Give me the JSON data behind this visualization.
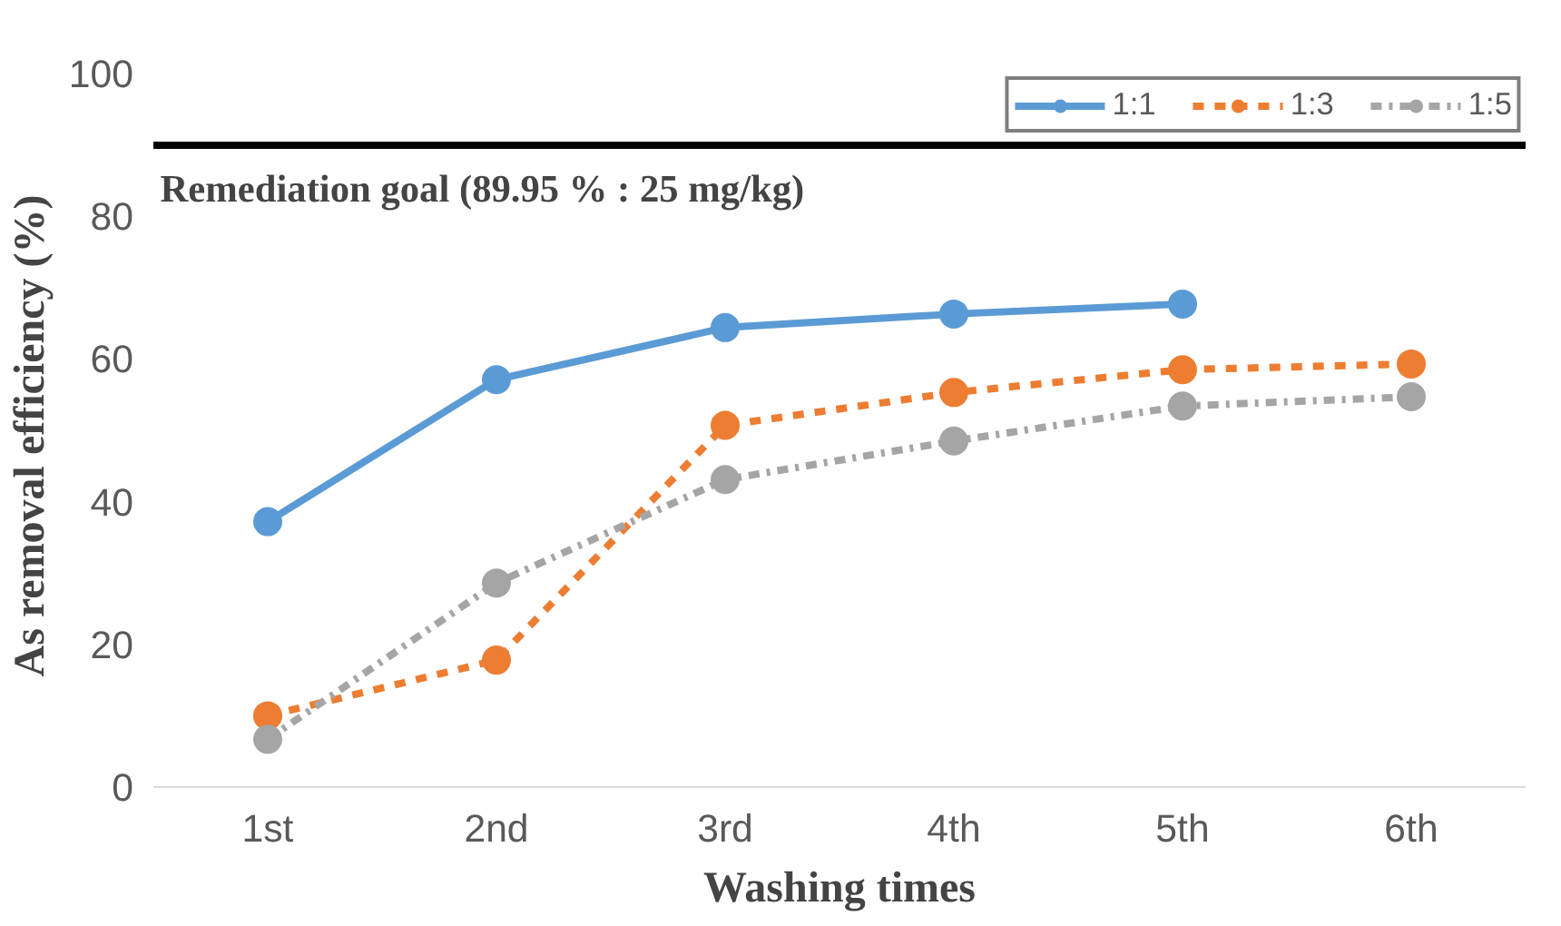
{
  "chart_data": {
    "type": "line",
    "xlabel": "Washing times",
    "ylabel": "As removal efficiency  (%)",
    "categories": [
      "1st",
      "2nd",
      "3rd",
      "4th",
      "5th",
      "6th"
    ],
    "series": [
      {
        "name": "1:1",
        "color": "#5b9bd5",
        "values": [
          37.2,
          57.1,
          64.4,
          66.3,
          67.7,
          null
        ],
        "line_style": "solid"
      },
      {
        "name": "1:3",
        "color": "#ed7d31",
        "values": [
          10.0,
          17.8,
          50.7,
          55.3,
          58.5,
          59.3
        ],
        "line_style": "dashed"
      },
      {
        "name": "1:5",
        "color": "#a5a5a5",
        "values": [
          6.7,
          28.6,
          43.1,
          48.5,
          53.4,
          54.7
        ],
        "line_style": "dashdot"
      }
    ],
    "ylim": [
      0,
      100
    ],
    "yticks": [
      0,
      20,
      40,
      60,
      80,
      100
    ],
    "ref_lines": [
      {
        "axis": "y",
        "value": 89.95,
        "label": "Remediation goal (89.95 % : 25 mg/kg)",
        "color": "#000000"
      }
    ],
    "grid": false,
    "legend": "top right",
    "marker": "circle"
  }
}
